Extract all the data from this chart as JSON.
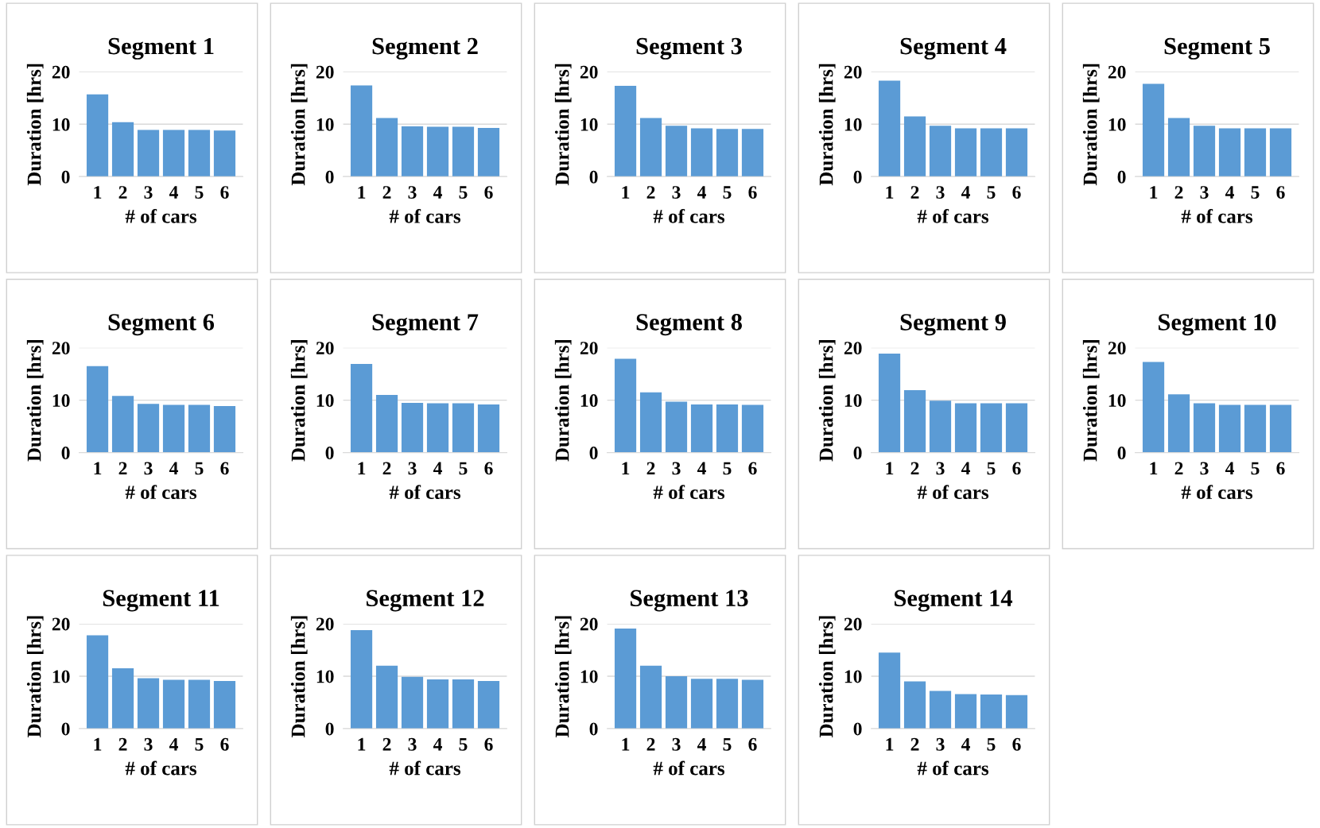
{
  "chart_data": [
    {
      "type": "bar",
      "title": "Segment 1",
      "xlabel": "# of cars",
      "ylabel": "Duration [hrs]",
      "categories": [
        "1",
        "2",
        "3",
        "4",
        "5",
        "6"
      ],
      "values": [
        15.7,
        10.4,
        8.9,
        8.9,
        8.9,
        8.8
      ],
      "color": "#5b9bd5",
      "ylim": [
        0,
        20
      ],
      "yticks": [
        0,
        10,
        20
      ],
      "grid": "y"
    },
    {
      "type": "bar",
      "title": "Segment 2",
      "xlabel": "# of cars",
      "ylabel": "Duration [hrs]",
      "categories": [
        "1",
        "2",
        "3",
        "4",
        "5",
        "6"
      ],
      "values": [
        17.4,
        11.2,
        9.6,
        9.5,
        9.5,
        9.3
      ],
      "color": "#5b9bd5",
      "ylim": [
        0,
        20
      ],
      "yticks": [
        0,
        10,
        20
      ],
      "grid": "y"
    },
    {
      "type": "bar",
      "title": "Segment 3",
      "xlabel": "# of cars",
      "ylabel": "Duration [hrs]",
      "categories": [
        "1",
        "2",
        "3",
        "4",
        "5",
        "6"
      ],
      "values": [
        17.3,
        11.2,
        9.7,
        9.2,
        9.1,
        9.1
      ],
      "color": "#5b9bd5",
      "ylim": [
        0,
        20
      ],
      "yticks": [
        0,
        10,
        20
      ],
      "grid": "y"
    },
    {
      "type": "bar",
      "title": "Segment 4",
      "xlabel": "# of cars",
      "ylabel": "Duration [hrs]",
      "categories": [
        "1",
        "2",
        "3",
        "4",
        "5",
        "6"
      ],
      "values": [
        18.3,
        11.5,
        9.7,
        9.2,
        9.2,
        9.2
      ],
      "color": "#5b9bd5",
      "ylim": [
        0,
        20
      ],
      "yticks": [
        0,
        10,
        20
      ],
      "grid": "y"
    },
    {
      "type": "bar",
      "title": "Segment 5",
      "xlabel": "# of cars",
      "ylabel": "Duration [hrs]",
      "categories": [
        "1",
        "2",
        "3",
        "4",
        "5",
        "6"
      ],
      "values": [
        17.7,
        11.2,
        9.7,
        9.2,
        9.2,
        9.2
      ],
      "color": "#5b9bd5",
      "ylim": [
        0,
        20
      ],
      "yticks": [
        0,
        10,
        20
      ],
      "grid": "y"
    },
    {
      "type": "bar",
      "title": "Segment 6",
      "xlabel": "# of cars",
      "ylabel": "Duration [hrs]",
      "categories": [
        "1",
        "2",
        "3",
        "4",
        "5",
        "6"
      ],
      "values": [
        16.5,
        10.8,
        9.3,
        9.1,
        9.1,
        8.9
      ],
      "color": "#5b9bd5",
      "ylim": [
        0,
        20
      ],
      "yticks": [
        0,
        10,
        20
      ],
      "grid": "y"
    },
    {
      "type": "bar",
      "title": "Segment 7",
      "xlabel": "# of cars",
      "ylabel": "Duration [hrs]",
      "categories": [
        "1",
        "2",
        "3",
        "4",
        "5",
        "6"
      ],
      "values": [
        16.9,
        11.0,
        9.5,
        9.4,
        9.4,
        9.2
      ],
      "color": "#5b9bd5",
      "ylim": [
        0,
        20
      ],
      "yticks": [
        0,
        10,
        20
      ],
      "grid": "y"
    },
    {
      "type": "bar",
      "title": "Segment 8",
      "xlabel": "# of cars",
      "ylabel": "Duration [hrs]",
      "categories": [
        "1",
        "2",
        "3",
        "4",
        "5",
        "6"
      ],
      "values": [
        17.9,
        11.5,
        9.7,
        9.2,
        9.2,
        9.1
      ],
      "color": "#5b9bd5",
      "ylim": [
        0,
        20
      ],
      "yticks": [
        0,
        10,
        20
      ],
      "grid": "y"
    },
    {
      "type": "bar",
      "title": "Segment 9",
      "xlabel": "# of cars",
      "ylabel": "Duration [hrs]",
      "categories": [
        "1",
        "2",
        "3",
        "4",
        "5",
        "6"
      ],
      "values": [
        18.9,
        11.9,
        9.9,
        9.4,
        9.4,
        9.4
      ],
      "color": "#5b9bd5",
      "ylim": [
        0,
        20
      ],
      "yticks": [
        0,
        10,
        20
      ],
      "grid": "y"
    },
    {
      "type": "bar",
      "title": "Segment 10",
      "xlabel": "# of cars",
      "ylabel": "Duration [hrs]",
      "categories": [
        "1",
        "2",
        "3",
        "4",
        "5",
        "6"
      ],
      "values": [
        17.3,
        11.1,
        9.4,
        9.1,
        9.1,
        9.1
      ],
      "color": "#5b9bd5",
      "ylim": [
        0,
        20
      ],
      "yticks": [
        0,
        10,
        20
      ],
      "grid": "y"
    },
    {
      "type": "bar",
      "title": "Segment 11",
      "xlabel": "# of cars",
      "ylabel": "Duration [hrs]",
      "categories": [
        "1",
        "2",
        "3",
        "4",
        "5",
        "6"
      ],
      "values": [
        17.8,
        11.5,
        9.6,
        9.3,
        9.3,
        9.1
      ],
      "color": "#5b9bd5",
      "ylim": [
        0,
        20
      ],
      "yticks": [
        0,
        10,
        20
      ],
      "grid": "y"
    },
    {
      "type": "bar",
      "title": "Segment 12",
      "xlabel": "# of cars",
      "ylabel": "Duration [hrs]",
      "categories": [
        "1",
        "2",
        "3",
        "4",
        "5",
        "6"
      ],
      "values": [
        18.8,
        12.0,
        9.9,
        9.4,
        9.4,
        9.1
      ],
      "color": "#5b9bd5",
      "ylim": [
        0,
        20
      ],
      "yticks": [
        0,
        10,
        20
      ],
      "grid": "y"
    },
    {
      "type": "bar",
      "title": "Segment 13",
      "xlabel": "# of cars",
      "ylabel": "Duration [hrs]",
      "categories": [
        "1",
        "2",
        "3",
        "4",
        "5",
        "6"
      ],
      "values": [
        19.1,
        12.0,
        10.0,
        9.5,
        9.5,
        9.3
      ],
      "color": "#5b9bd5",
      "ylim": [
        0,
        20
      ],
      "yticks": [
        0,
        10,
        20
      ],
      "grid": "y"
    },
    {
      "type": "bar",
      "title": "Segment 14",
      "xlabel": "# of cars",
      "ylabel": "Duration [hrs]",
      "categories": [
        "1",
        "2",
        "3",
        "4",
        "5",
        "6"
      ],
      "values": [
        14.5,
        9.0,
        7.2,
        6.6,
        6.5,
        6.4
      ],
      "color": "#5b9bd5",
      "ylim": [
        0,
        20
      ],
      "yticks": [
        0,
        10,
        20
      ],
      "grid": "y"
    }
  ]
}
